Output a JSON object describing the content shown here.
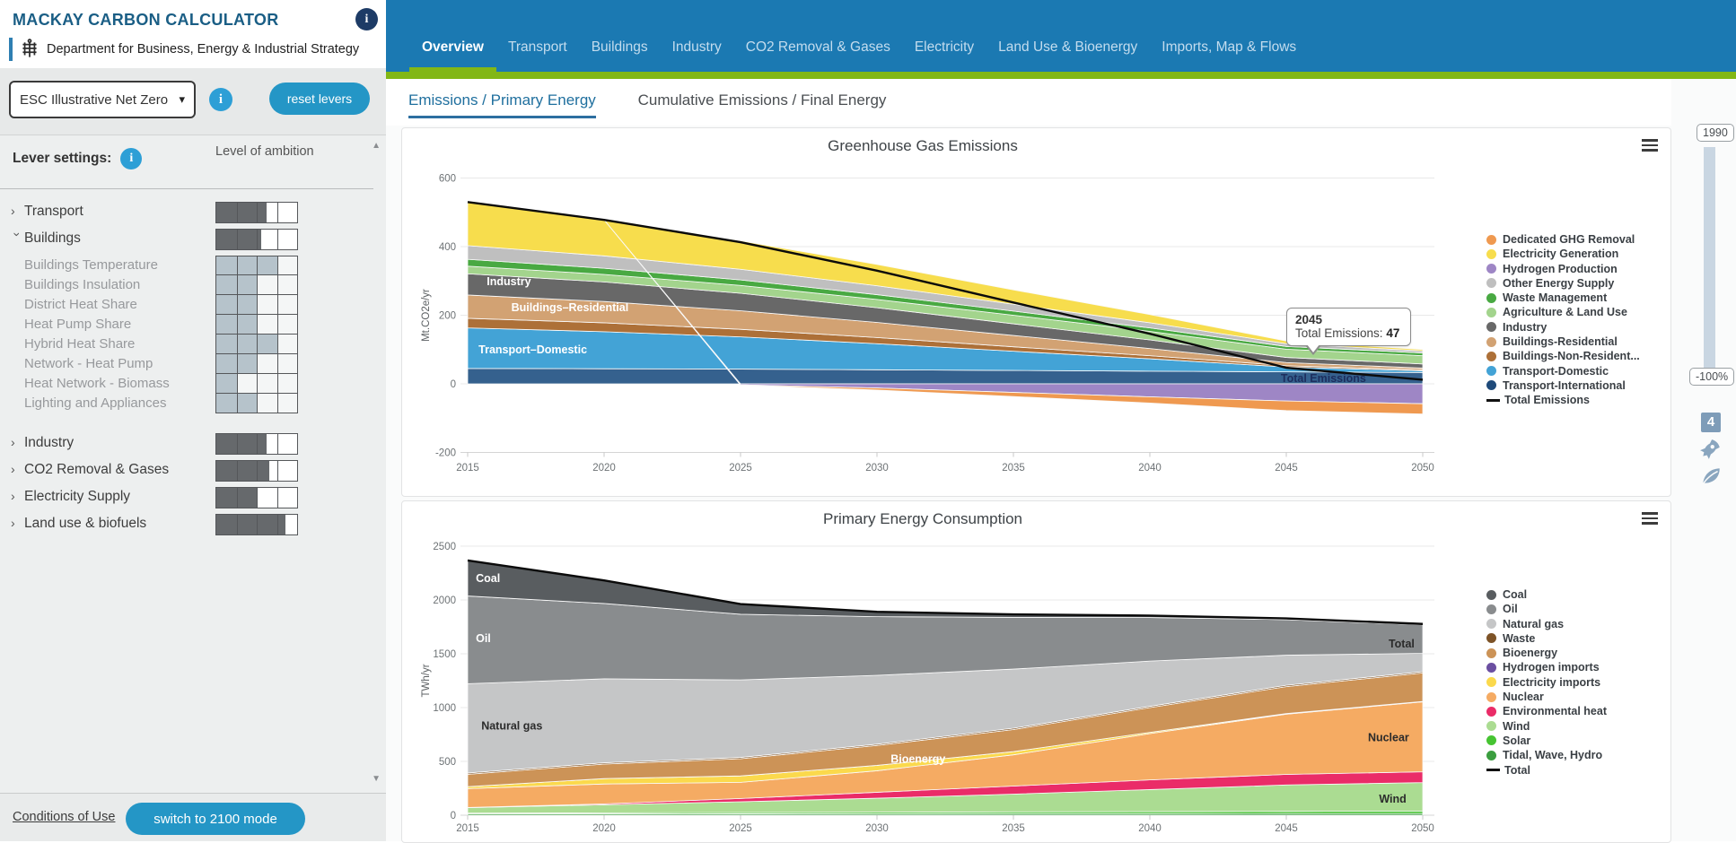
{
  "sidebar": {
    "title": "MACKAY CARBON CALCULATOR",
    "department": "Department for Business, Energy & Industrial Strategy",
    "scenario_select": {
      "value": "ESC Illustrative Net Zero"
    },
    "reset_button_label": "reset levers",
    "lever_settings_label": "Lever settings:",
    "level_of_ambition_label": "Level of ambition",
    "lever_colors": {
      "category_fill": "#66696c",
      "sub_fill": "#b6c3cb"
    },
    "levers": [
      {
        "label": "Transport",
        "type": "category",
        "expanded": false,
        "fill": 0.62
      },
      {
        "label": "Buildings",
        "type": "category",
        "expanded": true,
        "fill": 0.56
      },
      {
        "label": "Buildings Temperature",
        "type": "sub",
        "fill": 0.75
      },
      {
        "label": "Buildings Insulation",
        "type": "sub",
        "fill": 0.5
      },
      {
        "label": "District Heat Share",
        "type": "sub",
        "fill": 0.5
      },
      {
        "label": "Heat Pump Share",
        "type": "sub",
        "fill": 0.5
      },
      {
        "label": "Hybrid Heat Share",
        "type": "sub",
        "fill": 0.75
      },
      {
        "label": "Network - Heat Pump",
        "type": "sub",
        "fill": 0.5
      },
      {
        "label": "Heat Network - Biomass",
        "type": "sub",
        "fill": 0.25
      },
      {
        "label": "Lighting and Appliances",
        "type": "sub",
        "fill": 0.5
      },
      {
        "label": "Industry",
        "type": "category",
        "expanded": false,
        "fill": 0.62,
        "gap_before": true
      },
      {
        "label": "CO2 Removal & Gases",
        "type": "category",
        "expanded": false,
        "fill": 0.66
      },
      {
        "label": "Electricity Supply",
        "type": "category",
        "expanded": false,
        "fill": 0.5
      },
      {
        "label": "Land use & biofuels",
        "type": "category",
        "expanded": false,
        "fill": 0.85
      }
    ],
    "footer": {
      "conditions_link": "Conditions of Use",
      "mode_button": "switch to 2100 mode"
    }
  },
  "nav": {
    "items": [
      "Overview",
      "Transport",
      "Buildings",
      "Industry",
      "CO2 Removal & Gases",
      "Electricity",
      "Land Use & Bioenergy",
      "Imports, Map & Flows"
    ],
    "active": "Overview"
  },
  "subtabs": [
    {
      "label": "Emissions / Primary Energy",
      "active": true
    },
    {
      "label": "Cumulative Emissions / Final Energy",
      "active": false
    }
  ],
  "right_rail": {
    "top_label": "1990",
    "bottom_label": "-100%",
    "badge": "4"
  },
  "chart_data": [
    {
      "type": "area",
      "title": "Greenhouse Gas Emissions",
      "ylabel": "Mt.CO2e/yr",
      "x": [
        2015,
        2020,
        2025,
        2030,
        2035,
        2040,
        2045,
        2050
      ],
      "yticks": [
        600,
        400,
        200,
        0,
        -200
      ],
      "ylim": [
        -200,
        600
      ],
      "grid": true,
      "legend_position": "right",
      "series": [
        {
          "name": "Transport-International",
          "color": "#35618e",
          "values": [
            45,
            44,
            43,
            41,
            39,
            37,
            35,
            33
          ]
        },
        {
          "name": "Transport-Domestic",
          "color": "#43a3d6",
          "values": [
            118,
            108,
            94,
            76,
            56,
            36,
            14,
            5
          ]
        },
        {
          "name": "Buildings-Non-Residential",
          "color": "#ad7038",
          "values": [
            28,
            26,
            22,
            18,
            13,
            9,
            4,
            3
          ]
        },
        {
          "name": "Buildings-Residential",
          "color": "#d2a273",
          "values": [
            68,
            62,
            54,
            44,
            33,
            21,
            9,
            5
          ]
        },
        {
          "name": "Industry",
          "color": "#686868",
          "values": [
            62,
            57,
            51,
            43,
            34,
            25,
            15,
            12
          ]
        },
        {
          "name": "Agriculture & Land Use",
          "color": "#a3d48d",
          "values": [
            22,
            22,
            23,
            24,
            25,
            25,
            24,
            24
          ]
        },
        {
          "name": "Waste Management",
          "color": "#49a942",
          "values": [
            20,
            18,
            16,
            14,
            12,
            10,
            8,
            8
          ]
        },
        {
          "name": "Other Energy Supply",
          "color": "#bfbfbf",
          "values": [
            40,
            36,
            31,
            26,
            20,
            15,
            8,
            6
          ]
        },
        {
          "name": "Electricity Generation",
          "color": "#f7dd4d",
          "values": [
            127,
            105,
            83,
            62,
            42,
            24,
            8,
            4
          ]
        },
        {
          "name": "Hydrogen Production",
          "color": "#9e86c5",
          "values": [
            0,
            0,
            -3,
            -12,
            -25,
            -38,
            -50,
            -58
          ]
        },
        {
          "name": "Dedicated GHG Removal",
          "color": "#ef9950",
          "values": [
            0,
            0,
            -1,
            -6,
            -12,
            -18,
            -28,
            -30
          ]
        }
      ],
      "total_line": {
        "name": "Total Emissions",
        "color": "#0b0b0b"
      },
      "legend": [
        {
          "name": "Dedicated GHG Removal",
          "color": "#ef9950"
        },
        {
          "name": "Electricity Generation",
          "color": "#f7dd4d"
        },
        {
          "name": "Hydrogen Production",
          "color": "#9e86c5"
        },
        {
          "name": "Other Energy Supply",
          "color": "#bfbfbf"
        },
        {
          "name": "Waste Management",
          "color": "#49a942"
        },
        {
          "name": "Agriculture & Land Use",
          "color": "#a3d48d"
        },
        {
          "name": "Industry",
          "color": "#686868"
        },
        {
          "name": "Buildings-Residential",
          "color": "#d2a273"
        },
        {
          "name": "Buildings-Non-Resident...",
          "color": "#ad7038"
        },
        {
          "name": "Transport-Domestic",
          "color": "#43a3d6"
        },
        {
          "name": "Transport-International",
          "color": "#1f4a7a"
        },
        {
          "name": "Total Emissions",
          "type": "line",
          "color": "#111111"
        }
      ],
      "labels": [
        {
          "text": "Industry",
          "x": 2015.7,
          "y": 298,
          "color": "#ffffff"
        },
        {
          "text": "Buildings–Residential",
          "x": 2016.6,
          "y": 222,
          "color": "#ffffff"
        },
        {
          "text": "Transport–Domestic",
          "x": 2015.4,
          "y": 100,
          "color": "#ffffff"
        },
        {
          "text": "Total Emissions",
          "x": 2044.8,
          "y": 16,
          "color": "#1d2e5e"
        }
      ],
      "tooltip": {
        "year": "2045",
        "label": "Total Emissions:",
        "value": "47"
      }
    },
    {
      "type": "area",
      "title": "Primary Energy Consumption",
      "ylabel": "TWh/yr",
      "x": [
        2015,
        2020,
        2025,
        2030,
        2035,
        2040,
        2045,
        2050
      ],
      "yticks": [
        2500,
        2000,
        1500,
        1000,
        500,
        0
      ],
      "ylim": [
        0,
        2500
      ],
      "grid": true,
      "legend_position": "right",
      "series": [
        {
          "name": "Tidal, Wave, Hydro",
          "color": "#3b9e3f",
          "values": [
            12,
            12,
            13,
            14,
            15,
            15,
            16,
            16
          ]
        },
        {
          "name": "Solar",
          "color": "#46c432",
          "values": [
            8,
            10,
            12,
            14,
            16,
            18,
            20,
            22
          ]
        },
        {
          "name": "Wind",
          "color": "#abdc92",
          "values": [
            50,
            75,
            100,
            130,
            165,
            205,
            245,
            265
          ]
        },
        {
          "name": "Environmental heat",
          "color": "#ea2c68",
          "values": [
            2,
            8,
            30,
            55,
            75,
            90,
            98,
            100
          ]
        },
        {
          "name": "Nuclear",
          "color": "#f5ab63",
          "values": [
            175,
            185,
            150,
            200,
            290,
            430,
            560,
            650
          ]
        },
        {
          "name": "Electricity imports",
          "color": "#fbd94c",
          "values": [
            18,
            50,
            60,
            50,
            30,
            12,
            6,
            4
          ]
        },
        {
          "name": "Hydrogen imports",
          "color": "#6b4fa1",
          "values": [
            0,
            0,
            0,
            0,
            0,
            0,
            0,
            0
          ]
        },
        {
          "name": "Bioenergy",
          "color": "#cc9357",
          "values": [
            115,
            135,
            160,
            185,
            205,
            230,
            250,
            265
          ]
        },
        {
          "name": "Waste",
          "color": "#7d5327",
          "values": [
            12,
            12,
            12,
            12,
            12,
            12,
            12,
            12
          ]
        },
        {
          "name": "Natural gas",
          "color": "#c5c6c7",
          "values": [
            830,
            780,
            720,
            640,
            550,
            420,
            280,
            170
          ]
        },
        {
          "name": "Oil",
          "color": "#898c8e",
          "values": [
            815,
            700,
            610,
            545,
            480,
            405,
            330,
            265
          ]
        },
        {
          "name": "Coal",
          "color": "#595d60",
          "values": [
            330,
            215,
            95,
            45,
            28,
            18,
            12,
            8
          ]
        }
      ],
      "total_line": {
        "name": "Total",
        "color": "#0b0b0b"
      },
      "legend": [
        {
          "name": "Coal",
          "color": "#595d60"
        },
        {
          "name": "Oil",
          "color": "#898c8e"
        },
        {
          "name": "Natural gas",
          "color": "#c5c6c7"
        },
        {
          "name": "Waste",
          "color": "#7d5327"
        },
        {
          "name": "Bioenergy",
          "color": "#cc9357"
        },
        {
          "name": "Hydrogen imports",
          "color": "#6b4fa1"
        },
        {
          "name": "Electricity imports",
          "color": "#fbd94c"
        },
        {
          "name": "Nuclear",
          "color": "#f5ab63"
        },
        {
          "name": "Environmental heat",
          "color": "#ea2c68"
        },
        {
          "name": "Wind",
          "color": "#abdc92"
        },
        {
          "name": "Solar",
          "color": "#46c432"
        },
        {
          "name": "Tidal, Wave, Hydro",
          "color": "#3b9e3f"
        },
        {
          "name": "Total",
          "type": "line",
          "color": "#111111"
        }
      ],
      "labels": [
        {
          "text": "Coal",
          "x": 2015.3,
          "y": 2200,
          "color": "#ffffff"
        },
        {
          "text": "Oil",
          "x": 2015.3,
          "y": 1640,
          "color": "#ffffff"
        },
        {
          "text": "Natural gas",
          "x": 2015.5,
          "y": 830,
          "color": "#2b2b2b"
        },
        {
          "text": "Bioenergy",
          "x": 2030.5,
          "y": 520,
          "color": "#ffffff"
        },
        {
          "text": "Total",
          "x": 2049.7,
          "y": 1590,
          "color": "#2b2b2b",
          "anchor": "end"
        },
        {
          "text": "Nuclear",
          "x": 2049.5,
          "y": 720,
          "color": "#2b2b2b",
          "anchor": "end"
        },
        {
          "text": "Wind",
          "x": 2049.4,
          "y": 150,
          "color": "#2b2b2b",
          "anchor": "end"
        }
      ]
    }
  ]
}
